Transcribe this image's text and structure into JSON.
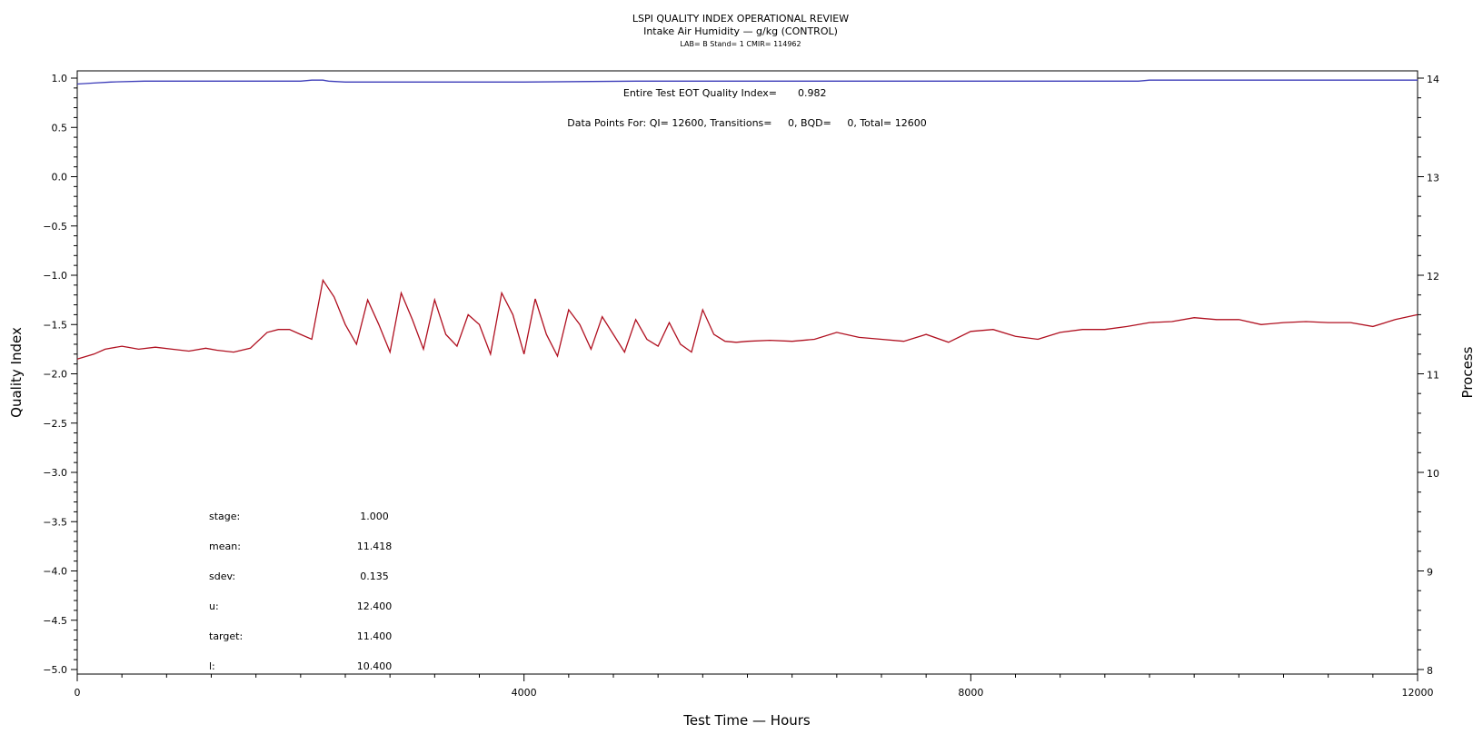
{
  "header": {
    "title": "LSPI QUALITY INDEX OPERATIONAL REVIEW",
    "subtitle": "Intake Air Humidity — g/kg (CONTROL)",
    "info": "LAB= B Stand= 1 CMIR= 114962"
  },
  "annotations": {
    "eot_label": "Entire Test EOT Quality Index=",
    "eot_value": "0.982",
    "points_line": "Data Points For: QI= 12600, Transitions=     0, BQD=     0, Total= 12600"
  },
  "stats": [
    {
      "label": "stage:",
      "value": "1.000"
    },
    {
      "label": "mean:",
      "value": "11.418"
    },
    {
      "label": "sdev:",
      "value": "0.135"
    },
    {
      "label": "u:",
      "value": "12.400"
    },
    {
      "label": "target:",
      "value": "11.400"
    },
    {
      "label": "l:",
      "value": "10.400"
    }
  ],
  "chart_data": {
    "type": "line",
    "xlabel": "Test Time — Hours",
    "ylabel": "Quality Index",
    "y2label": "Process",
    "xlim": [
      0,
      12000
    ],
    "ylim": [
      -5.0,
      1.0
    ],
    "y2lim": [
      8,
      14
    ],
    "xticks": [
      "0",
      "4000",
      "8000",
      "12000"
    ],
    "yticks": [
      "1.0",
      "0.5",
      "0.0",
      "−0.5",
      "−1.0",
      "−1.5",
      "−2.0",
      "−2.5",
      "−3.0",
      "−3.5",
      "−4.0",
      "−4.5",
      "−5.0"
    ],
    "y2ticks": [
      "14",
      "13",
      "12",
      "11",
      "10",
      "9",
      "8"
    ],
    "colors": {
      "quality_index": "#3a3ab8",
      "process": "#b01020",
      "axis": "#000000"
    },
    "series": [
      {
        "axis": "left",
        "x": [
          0,
          150,
          300,
          600,
          1000,
          1500,
          2000,
          2100,
          2200,
          2250,
          2400,
          3000,
          4000,
          5000,
          6000,
          7000,
          8000,
          9000,
          9500,
          9600,
          9700,
          10000,
          11000,
          12000
        ],
        "y": [
          0.94,
          0.95,
          0.96,
          0.97,
          0.97,
          0.97,
          0.97,
          0.98,
          0.98,
          0.97,
          0.96,
          0.96,
          0.96,
          0.97,
          0.97,
          0.97,
          0.97,
          0.97,
          0.97,
          0.98,
          0.98,
          0.98,
          0.98,
          0.98
        ]
      },
      {
        "axis": "right",
        "x": [
          0,
          150,
          250,
          400,
          550,
          700,
          850,
          1000,
          1150,
          1250,
          1400,
          1550,
          1700,
          1800,
          1900,
          2000,
          2100,
          2200,
          2300,
          2400,
          2500,
          2600,
          2700,
          2800,
          2900,
          3000,
          3100,
          3200,
          3300,
          3400,
          3500,
          3600,
          3700,
          3800,
          3900,
          4000,
          4100,
          4200,
          4300,
          4400,
          4500,
          4600,
          4700,
          4800,
          4900,
          5000,
          5100,
          5200,
          5300,
          5400,
          5500,
          5600,
          5700,
          5800,
          5900,
          6000,
          6200,
          6400,
          6600,
          6800,
          7000,
          7200,
          7400,
          7600,
          7800,
          8000,
          8200,
          8400,
          8600,
          8800,
          9000,
          9200,
          9400,
          9600,
          9800,
          10000,
          10200,
          10400,
          10600,
          10800,
          11000,
          11200,
          11400,
          11600,
          11800,
          12000
        ],
        "y": [
          11.15,
          11.2,
          11.25,
          11.28,
          11.25,
          11.27,
          11.25,
          11.23,
          11.26,
          11.24,
          11.22,
          11.26,
          11.42,
          11.45,
          11.45,
          11.4,
          11.35,
          11.95,
          11.78,
          11.5,
          11.3,
          11.75,
          11.5,
          11.22,
          11.82,
          11.55,
          11.25,
          11.75,
          11.4,
          11.28,
          11.6,
          11.5,
          11.2,
          11.82,
          11.6,
          11.2,
          11.76,
          11.4,
          11.18,
          11.65,
          11.5,
          11.25,
          11.58,
          11.4,
          11.22,
          11.55,
          11.35,
          11.28,
          11.52,
          11.3,
          11.22,
          11.65,
          11.4,
          11.33,
          11.32,
          11.33,
          11.34,
          11.33,
          11.35,
          11.42,
          11.37,
          11.35,
          11.33,
          11.4,
          11.32,
          11.43,
          11.45,
          11.38,
          11.35,
          11.42,
          11.45,
          11.45,
          11.48,
          11.52,
          11.53,
          11.57,
          11.55,
          11.55,
          11.5,
          11.52,
          11.53,
          11.52,
          11.52,
          11.48,
          11.55,
          11.6
        ]
      }
    ]
  }
}
